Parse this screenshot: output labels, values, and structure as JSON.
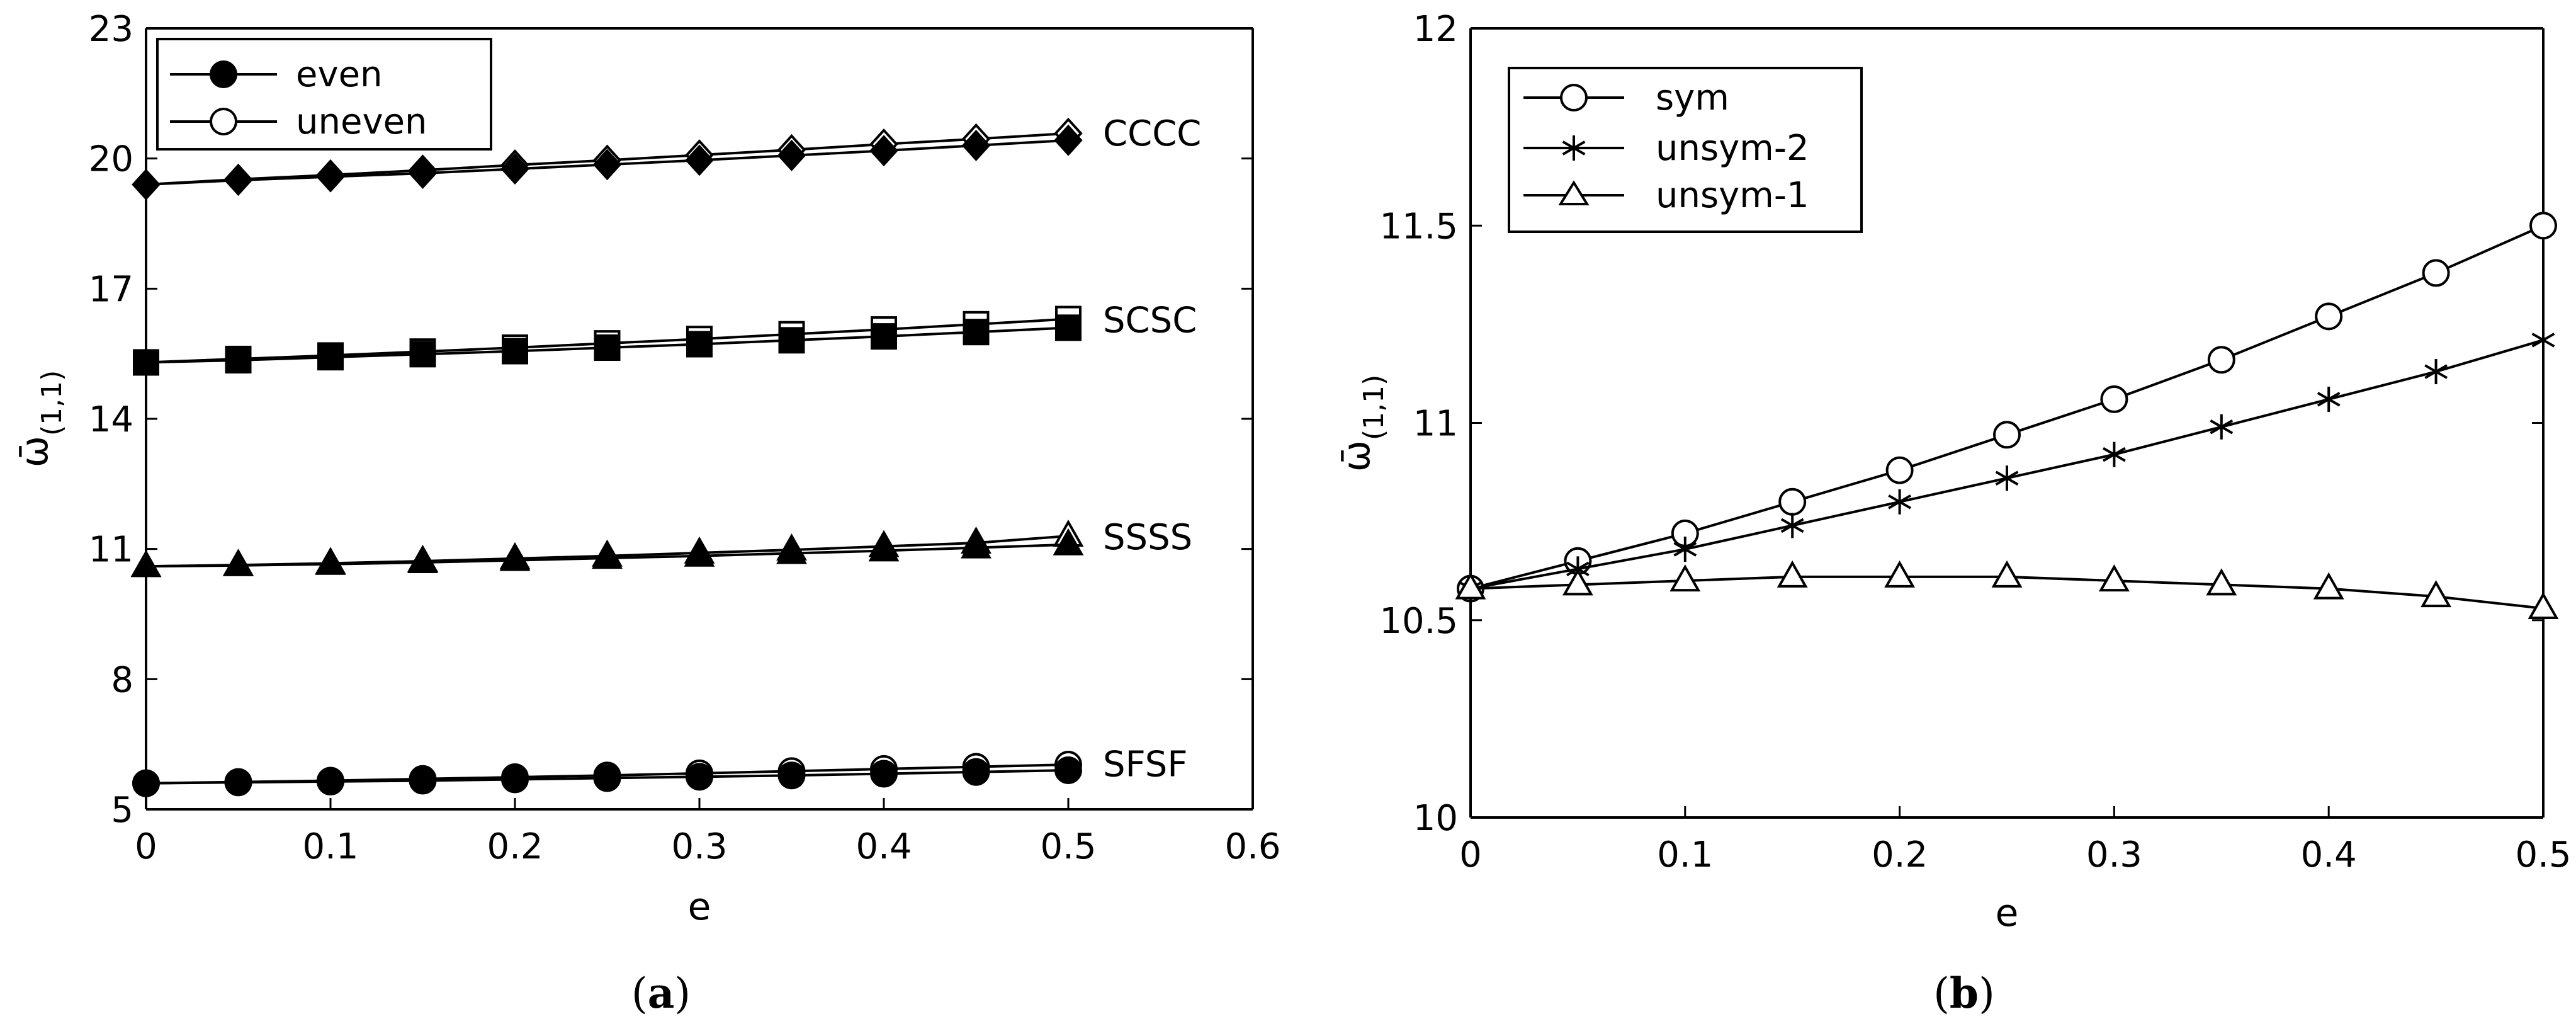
{
  "chart_data": [
    {
      "type": "line",
      "panel_label": "a",
      "xlabel": "e",
      "ylabel": "ω̄",
      "ylabel_subscript": "(1,1)",
      "xlim": [
        0,
        0.6
      ],
      "ylim": [
        5,
        23
      ],
      "xticks": [
        "0",
        "0.1",
        "0.2",
        "0.3",
        "0.4",
        "0.5",
        "0.6"
      ],
      "yticks": [
        "5",
        "8",
        "11",
        "14",
        "17",
        "20",
        "23"
      ],
      "legend": [
        {
          "label": "even",
          "marker": "filled-circle"
        },
        {
          "label": "uneven",
          "marker": "open-circle"
        }
      ],
      "x": [
        0,
        0.05,
        0.1,
        0.15,
        0.2,
        0.25,
        0.3,
        0.35,
        0.4,
        0.45,
        0.5
      ],
      "groups": [
        {
          "name": "CCCC",
          "marker": "diamond",
          "even": [
            19.4,
            19.5,
            19.58,
            19.66,
            19.76,
            19.86,
            19.96,
            20.07,
            20.18,
            20.3,
            20.42
          ],
          "uneven": [
            19.4,
            19.52,
            19.62,
            19.73,
            19.85,
            19.96,
            20.08,
            20.2,
            20.33,
            20.45,
            20.58
          ]
        },
        {
          "name": "SCSC",
          "marker": "square",
          "even": [
            15.3,
            15.35,
            15.42,
            15.49,
            15.56,
            15.64,
            15.72,
            15.81,
            15.9,
            16.0,
            16.1
          ],
          "uneven": [
            15.3,
            15.38,
            15.46,
            15.55,
            15.64,
            15.74,
            15.84,
            15.95,
            16.06,
            16.18,
            16.3
          ]
        },
        {
          "name": "SSSS",
          "marker": "triangle",
          "even": [
            10.6,
            10.62,
            10.65,
            10.69,
            10.74,
            10.79,
            10.84,
            10.9,
            10.96,
            11.03,
            11.1
          ],
          "uneven": [
            10.6,
            10.63,
            10.67,
            10.72,
            10.78,
            10.84,
            10.91,
            10.98,
            11.06,
            11.14,
            11.3
          ]
        },
        {
          "name": "SFSF",
          "marker": "circle",
          "even": [
            5.6,
            5.62,
            5.64,
            5.66,
            5.69,
            5.72,
            5.75,
            5.78,
            5.82,
            5.86,
            5.9
          ],
          "uneven": [
            5.6,
            5.63,
            5.66,
            5.7,
            5.74,
            5.78,
            5.83,
            5.88,
            5.93,
            5.98,
            6.03
          ]
        }
      ]
    },
    {
      "type": "line",
      "panel_label": "b",
      "xlabel": "e",
      "ylabel": "ω̄",
      "ylabel_subscript": "(1,1)",
      "xlim": [
        0,
        0.5
      ],
      "ylim": [
        10,
        12
      ],
      "xticks": [
        "0",
        "0.1",
        "0.2",
        "0.3",
        "0.4",
        "0.5"
      ],
      "yticks": [
        "10",
        "10.5",
        "11",
        "11.5",
        "12"
      ],
      "x": [
        0,
        0.05,
        0.1,
        0.15,
        0.2,
        0.25,
        0.3,
        0.35,
        0.4,
        0.45,
        0.5
      ],
      "series": [
        {
          "name": "sym",
          "marker": "open-circle",
          "values": [
            10.58,
            10.65,
            10.72,
            10.8,
            10.88,
            10.97,
            11.06,
            11.16,
            11.27,
            11.38,
            11.5
          ]
        },
        {
          "name": "unsym-2",
          "marker": "asterisk",
          "values": [
            10.58,
            10.63,
            10.68,
            10.74,
            10.8,
            10.86,
            10.92,
            10.99,
            11.06,
            11.13,
            11.21
          ]
        },
        {
          "name": "unsym-1",
          "marker": "open-triangle",
          "values": [
            10.58,
            10.59,
            10.6,
            10.61,
            10.61,
            10.61,
            10.6,
            10.59,
            10.58,
            10.56,
            10.53
          ]
        }
      ]
    }
  ]
}
